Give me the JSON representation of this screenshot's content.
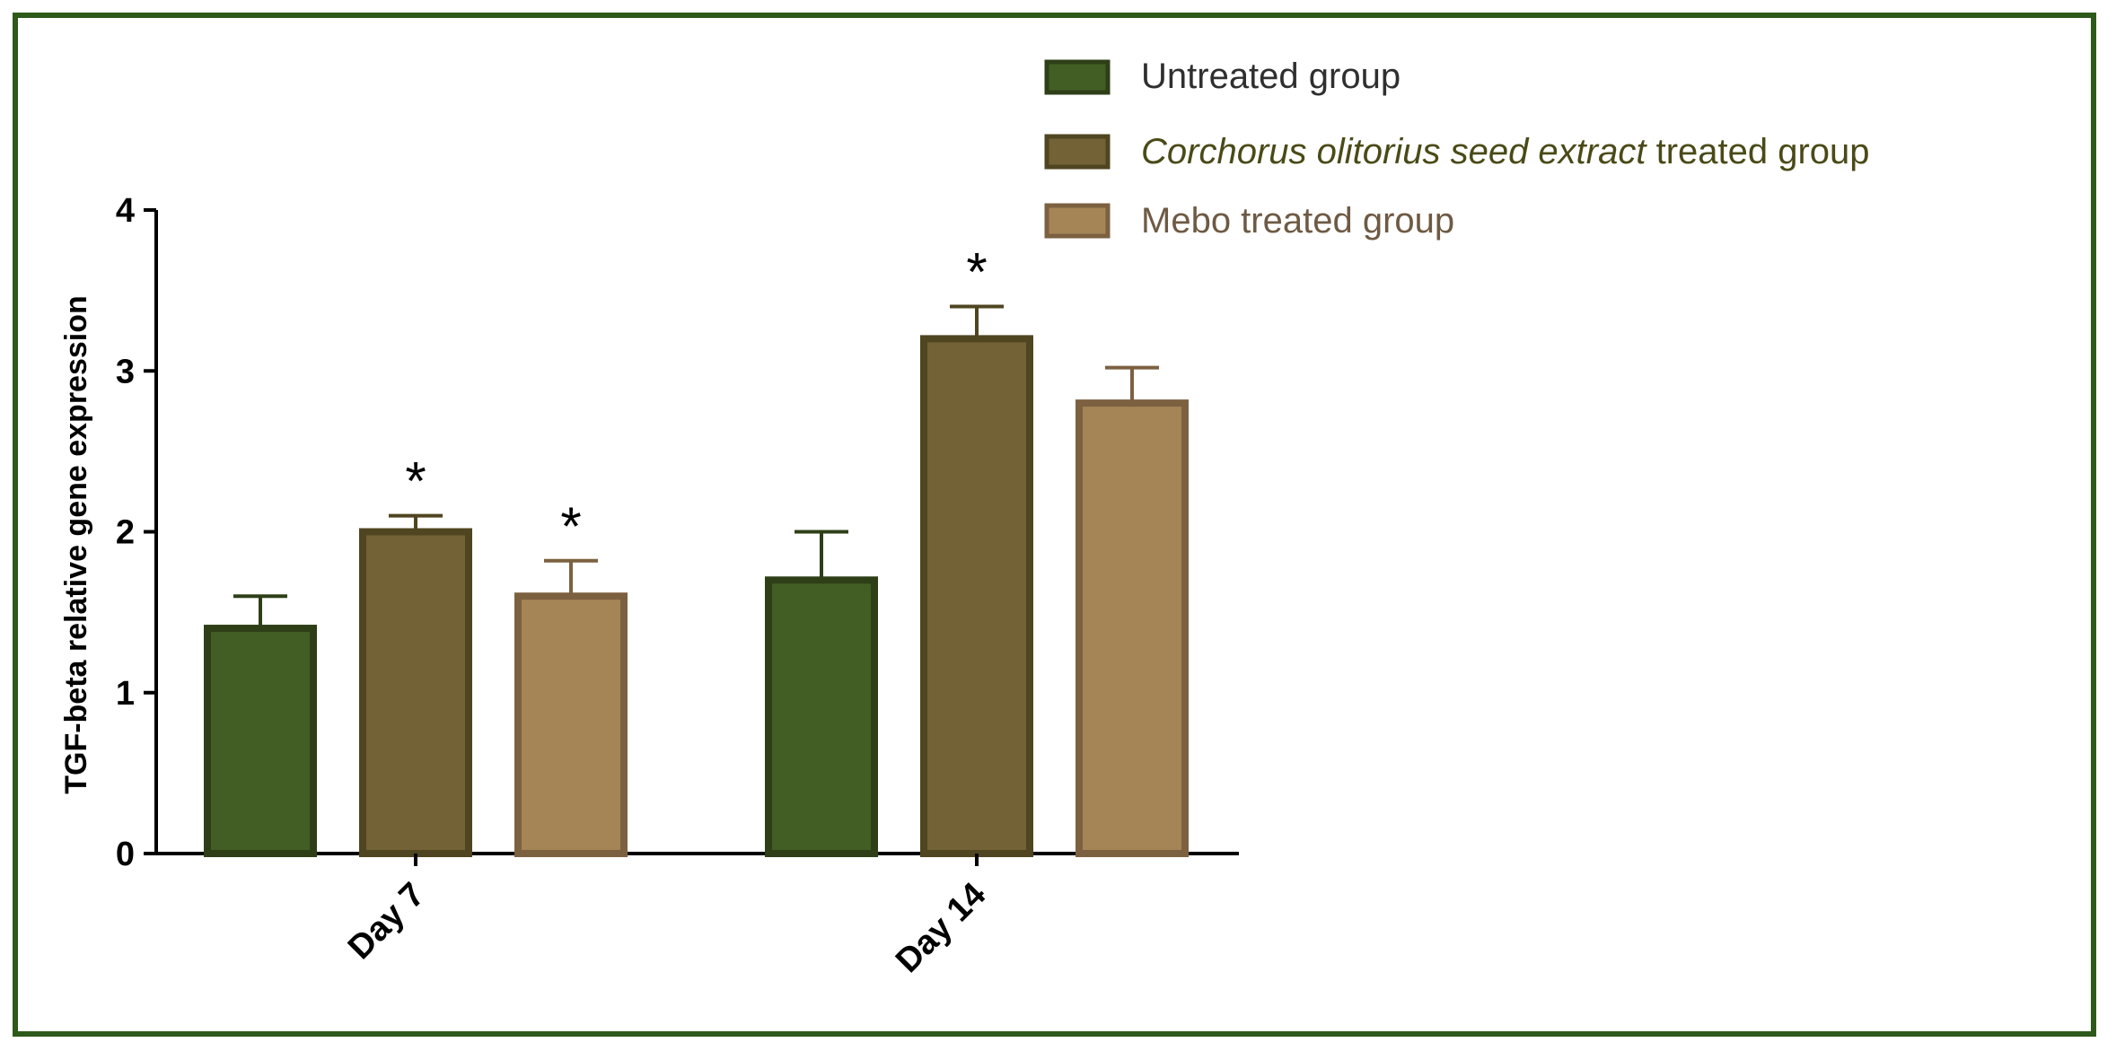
{
  "chart_data": {
    "type": "bar",
    "title": "",
    "xlabel": "",
    "ylabel": "TGF-beta relative gene expression",
    "ylim": [
      0,
      4
    ],
    "yticks": [
      "0",
      "1",
      "2",
      "3",
      "4"
    ],
    "categories": [
      "Day 7",
      "Day 14"
    ],
    "series": [
      {
        "name": "Untreated group",
        "values": [
          1.4,
          1.7
        ],
        "errors": [
          0.2,
          0.3
        ],
        "significance": [
          "",
          ""
        ],
        "fill": "#425e24",
        "stroke": "#2e3f18"
      },
      {
        "name": "Corchorus olitorius seed extract treated group",
        "name_italic": "Corchorus olitorius seed extract",
        "name_rest": " treated group",
        "values": [
          2.0,
          3.2
        ],
        "errors": [
          0.1,
          0.2
        ],
        "significance": [
          "*",
          "*"
        ],
        "fill": "#736236",
        "stroke": "#4f4520"
      },
      {
        "name": "Mebo treated group",
        "values": [
          1.6,
          2.8
        ],
        "errors": [
          0.22,
          0.22
        ],
        "significance": [
          "*",
          ""
        ],
        "fill": "#a58556",
        "stroke": "#7c6141"
      }
    ],
    "legend_position": "top-right",
    "grid": false
  },
  "colors": {
    "frame": "#2d5a1a",
    "axis": "#000000",
    "legend_text_untreated": "#2f2f2f",
    "legend_text_corchorus": "#4a4a18",
    "legend_text_mebo": "#6e5a44"
  }
}
